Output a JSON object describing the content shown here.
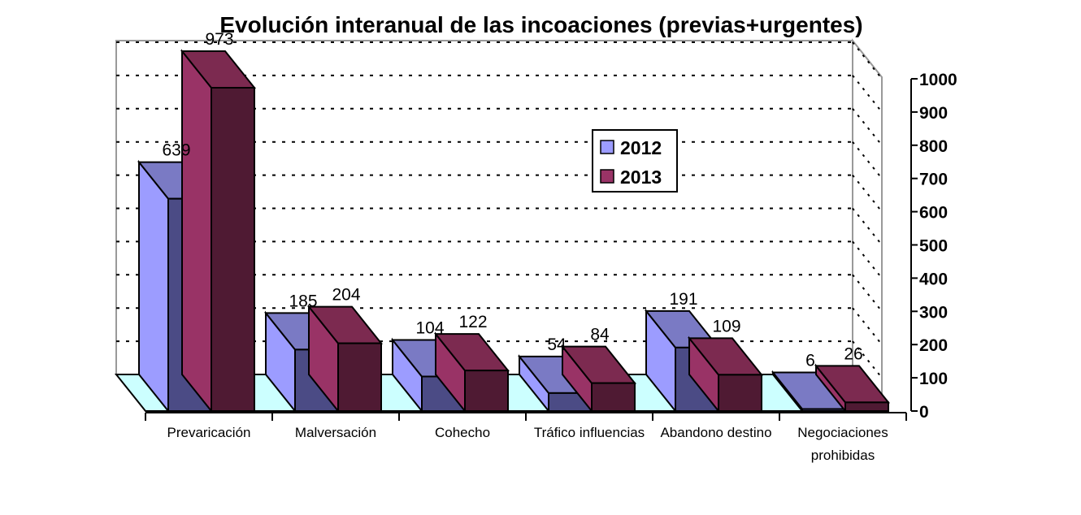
{
  "chart_data": {
    "type": "bar",
    "title": "Evolución interanual de las incoaciones (previas+urgentes)",
    "xlabel": "",
    "ylabel": "",
    "categories": [
      [
        "Prevaricación"
      ],
      [
        "Malversación"
      ],
      [
        "Cohecho"
      ],
      [
        "Tráfico influencias"
      ],
      [
        "Abandono destino"
      ],
      [
        "Negociaciones",
        "prohibidas"
      ]
    ],
    "series": [
      {
        "name": "2012",
        "values": [
          639,
          185,
          104,
          54,
          191,
          6
        ],
        "labels": [
          "639",
          "185",
          "104",
          "54",
          "191",
          "6"
        ]
      },
      {
        "name": "2013",
        "values": [
          973,
          204,
          122,
          84,
          109,
          26
        ],
        "labels": [
          "973",
          "204",
          "122",
          "84",
          "109",
          "26"
        ]
      }
    ],
    "ylim": [
      0,
      1000
    ],
    "yticks": [
      "0",
      "100",
      "200",
      "300",
      "400",
      "500",
      "600",
      "700",
      "800",
      "900",
      "1000"
    ],
    "grid": true,
    "legend_position": "center-right",
    "colors": {
      "s2012_front": "#4b4b85",
      "s2012_side": "#9c9cff",
      "s2012_top": "#7a7ac4",
      "s2013_front": "#4f1a33",
      "s2013_side": "#993366",
      "s2013_top": "#7c2a50",
      "floor": "#ccffff",
      "grid": "#000000"
    }
  }
}
